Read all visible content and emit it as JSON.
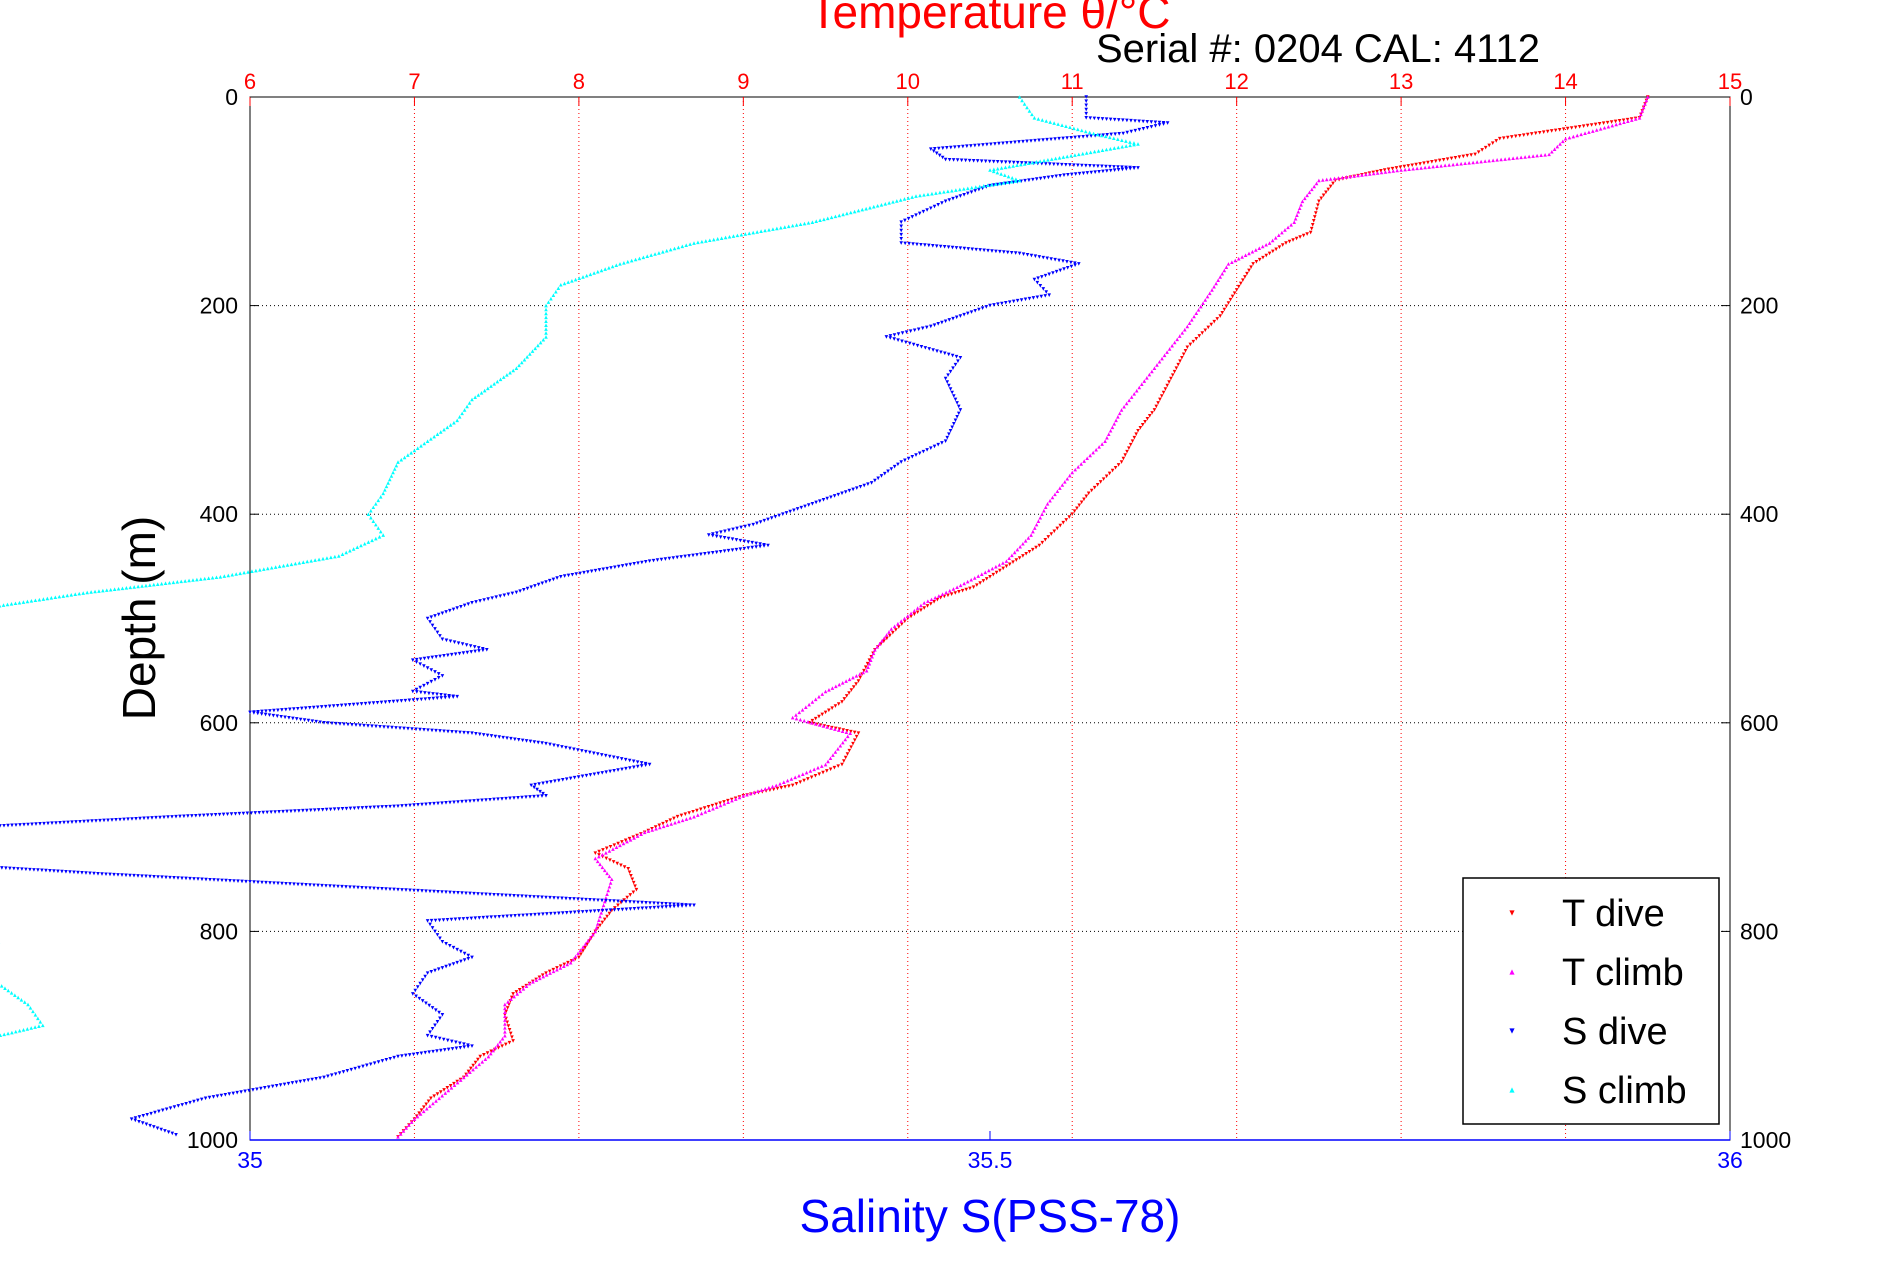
{
  "chart_data": {
    "type": "scatter",
    "title": "Temperature θ/°C",
    "serial_label": "Serial #: 0204  CAL: 4112",
    "ylabel": "Depth (m)",
    "xlabel_bottom": "Salinity S(PSS-78)",
    "ylim": [
      0,
      1000
    ],
    "y_reversed": true,
    "y_ticks": [
      "0",
      "200",
      "400",
      "600",
      "800",
      "1000"
    ],
    "temperature_axis": {
      "xlim": [
        6,
        15
      ],
      "ticks": [
        "6",
        "7",
        "8",
        "9",
        "10",
        "11",
        "12",
        "13",
        "14",
        "15"
      ],
      "color": "#ff0000",
      "grid": true
    },
    "salinity_axis": {
      "xlim": [
        35,
        36
      ],
      "ticks": [
        "35",
        "35.5",
        "36"
      ],
      "color": "#0000ff"
    },
    "legend_position": "bottom-right",
    "series": [
      {
        "name": "T dive",
        "axis": "temperature",
        "color": "#ff0000",
        "marker": "down-triangle",
        "points": [
          [
            14.5,
            0
          ],
          [
            14.45,
            20
          ],
          [
            13.6,
            40
          ],
          [
            13.45,
            55
          ],
          [
            12.9,
            70
          ],
          [
            12.6,
            80
          ],
          [
            12.5,
            100
          ],
          [
            12.45,
            130
          ],
          [
            12.3,
            140
          ],
          [
            12.1,
            160
          ],
          [
            12.0,
            185
          ],
          [
            11.9,
            210
          ],
          [
            11.7,
            240
          ],
          [
            11.6,
            270
          ],
          [
            11.5,
            300
          ],
          [
            11.4,
            320
          ],
          [
            11.3,
            350
          ],
          [
            11.1,
            380
          ],
          [
            11.0,
            400
          ],
          [
            10.8,
            430
          ],
          [
            10.6,
            450
          ],
          [
            10.4,
            470
          ],
          [
            10.2,
            480
          ],
          [
            10.0,
            500
          ],
          [
            9.8,
            530
          ],
          [
            9.7,
            560
          ],
          [
            9.6,
            580
          ],
          [
            9.4,
            600
          ],
          [
            9.7,
            610
          ],
          [
            9.6,
            640
          ],
          [
            9.3,
            660
          ],
          [
            9.0,
            670
          ],
          [
            8.6,
            690
          ],
          [
            8.4,
            705
          ],
          [
            8.1,
            725
          ],
          [
            8.3,
            740
          ],
          [
            8.35,
            760
          ],
          [
            8.2,
            780
          ],
          [
            8.1,
            800
          ],
          [
            8.0,
            825
          ],
          [
            7.8,
            840
          ],
          [
            7.6,
            860
          ],
          [
            7.55,
            880
          ],
          [
            7.6,
            905
          ],
          [
            7.4,
            920
          ],
          [
            7.3,
            940
          ],
          [
            7.1,
            960
          ],
          [
            7.0,
            980
          ],
          [
            6.9,
            997
          ]
        ]
      },
      {
        "name": "T climb",
        "axis": "temperature",
        "color": "#ff00ff",
        "marker": "up-triangle",
        "points": [
          [
            14.5,
            0
          ],
          [
            14.45,
            20
          ],
          [
            14.0,
            40
          ],
          [
            13.9,
            55
          ],
          [
            13.0,
            70
          ],
          [
            12.5,
            80
          ],
          [
            12.4,
            100
          ],
          [
            12.35,
            120
          ],
          [
            12.2,
            140
          ],
          [
            11.95,
            160
          ],
          [
            11.85,
            185
          ],
          [
            11.7,
            220
          ],
          [
            11.5,
            260
          ],
          [
            11.3,
            300
          ],
          [
            11.2,
            330
          ],
          [
            11.0,
            360
          ],
          [
            10.85,
            390
          ],
          [
            10.75,
            420
          ],
          [
            10.6,
            445
          ],
          [
            10.3,
            470
          ],
          [
            10.1,
            485
          ],
          [
            9.9,
            510
          ],
          [
            9.8,
            530
          ],
          [
            9.75,
            550
          ],
          [
            9.5,
            570
          ],
          [
            9.3,
            595
          ],
          [
            9.65,
            610
          ],
          [
            9.5,
            640
          ],
          [
            9.2,
            660
          ],
          [
            9.0,
            670
          ],
          [
            8.7,
            690
          ],
          [
            8.4,
            705
          ],
          [
            8.1,
            730
          ],
          [
            8.2,
            750
          ],
          [
            8.15,
            775
          ],
          [
            8.1,
            800
          ],
          [
            7.95,
            830
          ],
          [
            7.7,
            850
          ],
          [
            7.55,
            870
          ],
          [
            7.55,
            900
          ],
          [
            7.45,
            920
          ],
          [
            7.3,
            940
          ],
          [
            7.15,
            960
          ],
          [
            7.0,
            980
          ],
          [
            6.9,
            997
          ]
        ]
      },
      {
        "name": "S dive",
        "axis": "salinity",
        "color": "#0000ff",
        "marker": "down-triangle",
        "points": [
          [
            35.565,
            0
          ],
          [
            35.565,
            20
          ],
          [
            35.62,
            25
          ],
          [
            35.59,
            35
          ],
          [
            35.46,
            50
          ],
          [
            35.47,
            60
          ],
          [
            35.6,
            68
          ],
          [
            35.55,
            75
          ],
          [
            35.5,
            85
          ],
          [
            35.47,
            100
          ],
          [
            35.44,
            120
          ],
          [
            35.44,
            140
          ],
          [
            35.52,
            150
          ],
          [
            35.56,
            160
          ],
          [
            35.53,
            175
          ],
          [
            35.54,
            190
          ],
          [
            35.5,
            200
          ],
          [
            35.46,
            220
          ],
          [
            35.43,
            230
          ],
          [
            35.48,
            250
          ],
          [
            35.47,
            270
          ],
          [
            35.48,
            300
          ],
          [
            35.47,
            330
          ],
          [
            35.44,
            350
          ],
          [
            35.42,
            370
          ],
          [
            35.38,
            390
          ],
          [
            35.34,
            410
          ],
          [
            35.31,
            420
          ],
          [
            35.35,
            430
          ],
          [
            35.27,
            445
          ],
          [
            35.21,
            460
          ],
          [
            35.18,
            475
          ],
          [
            35.15,
            485
          ],
          [
            35.12,
            500
          ],
          [
            35.13,
            520
          ],
          [
            35.16,
            530
          ],
          [
            35.11,
            540
          ],
          [
            35.13,
            555
          ],
          [
            35.11,
            570
          ],
          [
            35.14,
            575
          ],
          [
            35.0,
            590
          ],
          [
            35.05,
            600
          ],
          [
            35.15,
            610
          ],
          [
            35.2,
            620
          ],
          [
            35.27,
            640
          ],
          [
            35.19,
            660
          ],
          [
            35.2,
            670
          ],
          [
            35.1,
            680
          ],
          [
            34.95,
            690
          ],
          [
            34.75,
            705
          ],
          [
            34.67,
            725
          ],
          [
            34.9,
            745
          ],
          [
            35.1,
            760
          ],
          [
            35.3,
            775
          ],
          [
            35.12,
            790
          ],
          [
            35.13,
            810
          ],
          [
            35.15,
            825
          ],
          [
            35.12,
            840
          ],
          [
            35.11,
            860
          ],
          [
            35.13,
            880
          ],
          [
            35.12,
            900
          ],
          [
            35.15,
            910
          ],
          [
            35.1,
            920
          ],
          [
            35.05,
            940
          ],
          [
            34.97,
            960
          ],
          [
            34.92,
            980
          ],
          [
            34.95,
            995
          ]
        ]
      },
      {
        "name": "S climb",
        "axis": "salinity",
        "color": "#00ffff",
        "marker": "up-triangle",
        "points": [
          [
            35.52,
            0
          ],
          [
            35.53,
            20
          ],
          [
            35.57,
            35
          ],
          [
            35.6,
            45
          ],
          [
            35.56,
            55
          ],
          [
            35.5,
            70
          ],
          [
            35.52,
            80
          ],
          [
            35.45,
            95
          ],
          [
            35.38,
            120
          ],
          [
            35.3,
            140
          ],
          [
            35.25,
            160
          ],
          [
            35.21,
            180
          ],
          [
            35.2,
            200
          ],
          [
            35.2,
            230
          ],
          [
            35.18,
            260
          ],
          [
            35.15,
            290
          ],
          [
            35.14,
            310
          ],
          [
            35.12,
            330
          ],
          [
            35.1,
            350
          ],
          [
            35.09,
            380
          ],
          [
            35.08,
            400
          ],
          [
            35.09,
            420
          ],
          [
            35.06,
            440
          ],
          [
            34.98,
            460
          ],
          [
            34.89,
            475
          ],
          [
            34.82,
            490
          ],
          [
            34.73,
            510
          ],
          [
            34.69,
            520
          ],
          [
            34.73,
            535
          ],
          [
            34.7,
            550
          ],
          [
            34.7,
            565
          ],
          [
            34.72,
            580
          ],
          [
            34.7,
            595
          ],
          [
            34.77,
            605
          ],
          [
            34.8,
            615
          ],
          [
            34.78,
            630
          ],
          [
            34.7,
            650
          ],
          [
            34.63,
            670
          ],
          [
            34.55,
            690
          ],
          [
            34.47,
            705
          ],
          [
            34.4,
            725
          ],
          [
            34.55,
            740
          ],
          [
            34.78,
            755
          ],
          [
            34.82,
            770
          ],
          [
            34.82,
            790
          ],
          [
            34.83,
            810
          ],
          [
            34.81,
            830
          ],
          [
            34.83,
            850
          ],
          [
            34.85,
            870
          ],
          [
            34.86,
            890
          ],
          [
            34.8,
            910
          ],
          [
            34.73,
            930
          ],
          [
            34.67,
            950
          ],
          [
            34.61,
            970
          ],
          [
            34.6,
            985
          ],
          [
            34.6,
            995
          ]
        ]
      }
    ]
  }
}
